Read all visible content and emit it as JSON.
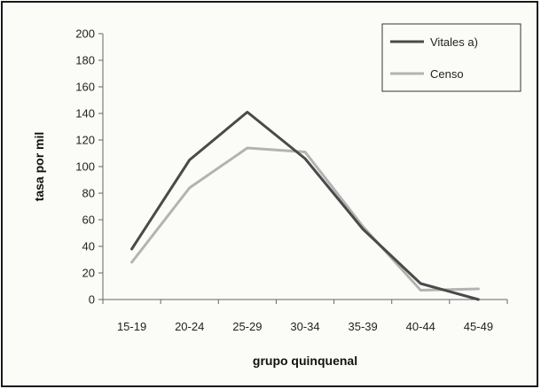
{
  "chart_data": {
    "type": "line",
    "categories": [
      "15-19",
      "20-24",
      "25-29",
      "30-34",
      "35-39",
      "40-44",
      "45-49"
    ],
    "series": [
      {
        "name": "Vitales a)",
        "values": [
          38,
          105,
          141,
          106,
          53,
          12,
          0
        ],
        "color": "#4a4a4a"
      },
      {
        "name": "Censo",
        "values": [
          28,
          84,
          114,
          111,
          55,
          7,
          8
        ],
        "color": "#b3b3b3"
      }
    ],
    "ylim": [
      0,
      200
    ],
    "yticks": [
      0,
      20,
      40,
      60,
      80,
      100,
      120,
      140,
      160,
      180,
      200
    ],
    "xlabel": "grupo quinquenal",
    "ylabel": "tasa por mil",
    "grid": false,
    "legend_position": "top-right"
  }
}
